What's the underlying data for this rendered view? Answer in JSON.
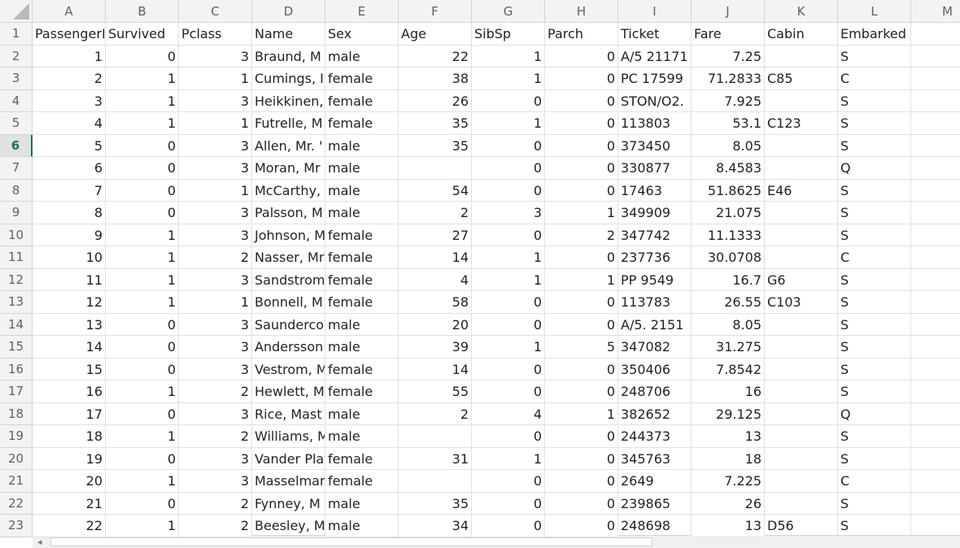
{
  "columns": [
    "A",
    "B",
    "C",
    "D",
    "E",
    "F",
    "G",
    "H",
    "I",
    "J",
    "K",
    "L",
    "M"
  ],
  "active_row": 6,
  "header": [
    "PassengerId",
    "Survived",
    "Pclass",
    "Name",
    "Sex",
    "Age",
    "SibSp",
    "Parch",
    "Ticket",
    "Fare",
    "Cabin",
    "Embarked"
  ],
  "rows": [
    [
      "1",
      "0",
      "3",
      "Braund, M",
      "male",
      "22",
      "1",
      "0",
      "A/5 21171",
      "7.25",
      "",
      "S"
    ],
    [
      "2",
      "1",
      "1",
      "Cumings, I",
      "female",
      "38",
      "1",
      "0",
      "PC 17599",
      "71.2833",
      "C85",
      "C"
    ],
    [
      "3",
      "1",
      "3",
      "Heikkinen,",
      "female",
      "26",
      "0",
      "0",
      "STON/O2.",
      "7.925",
      "",
      "S"
    ],
    [
      "4",
      "1",
      "1",
      "Futrelle, M",
      "female",
      "35",
      "1",
      "0",
      "113803",
      "53.1",
      "C123",
      "S"
    ],
    [
      "5",
      "0",
      "3",
      "Allen, Mr. '",
      "male",
      "35",
      "0",
      "0",
      "373450",
      "8.05",
      "",
      "S"
    ],
    [
      "6",
      "0",
      "3",
      "Moran, Mr",
      "male",
      "",
      "0",
      "0",
      "330877",
      "8.4583",
      "",
      "Q"
    ],
    [
      "7",
      "0",
      "1",
      "McCarthy,",
      "male",
      "54",
      "0",
      "0",
      "17463",
      "51.8625",
      "E46",
      "S"
    ],
    [
      "8",
      "0",
      "3",
      "Palsson, M",
      "male",
      "2",
      "3",
      "1",
      "349909",
      "21.075",
      "",
      "S"
    ],
    [
      "9",
      "1",
      "3",
      "Johnson, M",
      "female",
      "27",
      "0",
      "2",
      "347742",
      "11.1333",
      "",
      "S"
    ],
    [
      "10",
      "1",
      "2",
      "Nasser, Mr",
      "female",
      "14",
      "1",
      "0",
      "237736",
      "30.0708",
      "",
      "C"
    ],
    [
      "11",
      "1",
      "3",
      "Sandstrom",
      "female",
      "4",
      "1",
      "1",
      "PP 9549",
      "16.7",
      "G6",
      "S"
    ],
    [
      "12",
      "1",
      "1",
      "Bonnell, M",
      "female",
      "58",
      "0",
      "0",
      "113783",
      "26.55",
      "C103",
      "S"
    ],
    [
      "13",
      "0",
      "3",
      "Saunderco",
      "male",
      "20",
      "0",
      "0",
      "A/5. 2151",
      "8.05",
      "",
      "S"
    ],
    [
      "14",
      "0",
      "3",
      "Andersson",
      "male",
      "39",
      "1",
      "5",
      "347082",
      "31.275",
      "",
      "S"
    ],
    [
      "15",
      "0",
      "3",
      "Vestrom, M",
      "female",
      "14",
      "0",
      "0",
      "350406",
      "7.8542",
      "",
      "S"
    ],
    [
      "16",
      "1",
      "2",
      "Hewlett, M",
      "female",
      "55",
      "0",
      "0",
      "248706",
      "16",
      "",
      "S"
    ],
    [
      "17",
      "0",
      "3",
      "Rice, Mast",
      "male",
      "2",
      "4",
      "1",
      "382652",
      "29.125",
      "",
      "Q"
    ],
    [
      "18",
      "1",
      "2",
      "Williams, M",
      "male",
      "",
      "0",
      "0",
      "244373",
      "13",
      "",
      "S"
    ],
    [
      "19",
      "0",
      "3",
      "Vander Pla",
      "female",
      "31",
      "1",
      "0",
      "345763",
      "18",
      "",
      "S"
    ],
    [
      "20",
      "1",
      "3",
      "Masselmar",
      "female",
      "",
      "0",
      "0",
      "2649",
      "7.225",
      "",
      "C"
    ],
    [
      "21",
      "0",
      "2",
      "Fynney, M",
      "male",
      "35",
      "0",
      "0",
      "239865",
      "26",
      "",
      "S"
    ],
    [
      "22",
      "1",
      "2",
      "Beesley, M",
      "male",
      "34",
      "0",
      "0",
      "248698",
      "13",
      "D56",
      "S"
    ]
  ],
  "scrollbar": {
    "left_arrow": "◂"
  }
}
